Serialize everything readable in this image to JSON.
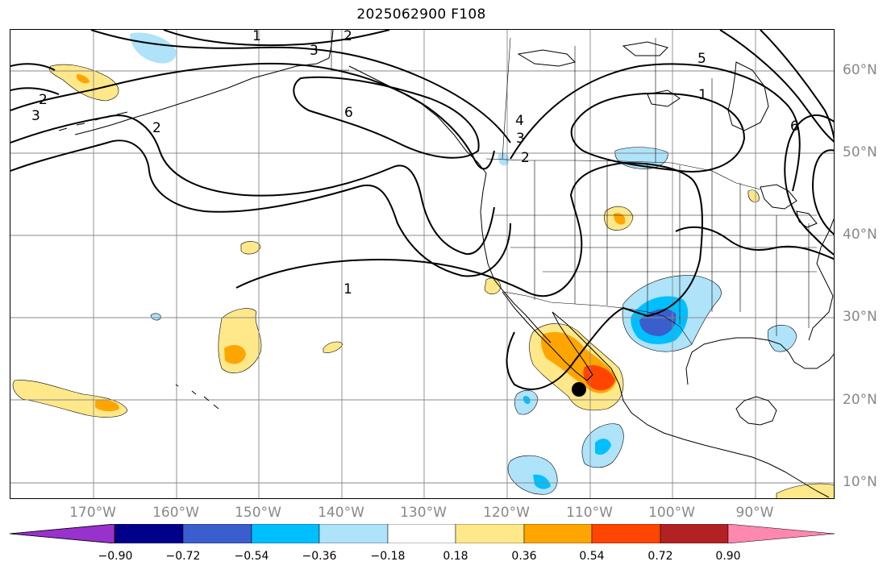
{
  "title": "2025062900 F108",
  "lat_labels": [
    "60°N",
    "50°N",
    "40°N",
    "30°N",
    "20°N",
    "10°N"
  ],
  "lon_labels": [
    "170°W",
    "160°W",
    "150°W",
    "140°W",
    "130°W",
    "120°W",
    "110°W",
    "100°W",
    "90°W"
  ],
  "contour_labels": [
    "1",
    "2",
    "3",
    "5",
    "1",
    "6",
    "2",
    "3",
    "4",
    "3",
    "2",
    "6",
    "1",
    "2"
  ],
  "colorbar": {
    "ticks": [
      "−0.90",
      "−0.72",
      "−0.54",
      "−0.36",
      "−0.18",
      "0.18",
      "0.36",
      "0.54",
      "0.72",
      "0.90"
    ],
    "colors": [
      "#9932cc",
      "#00008b",
      "#3a5fcd",
      "#00bfff",
      "#aee3fa",
      "#ffffff",
      "#ffe88a",
      "#ffa500",
      "#ff4500",
      "#b22222",
      "#ff88b0"
    ]
  },
  "colors": {
    "gridline": "#888888",
    "coastline": "#000000",
    "marker": "#000000"
  }
}
